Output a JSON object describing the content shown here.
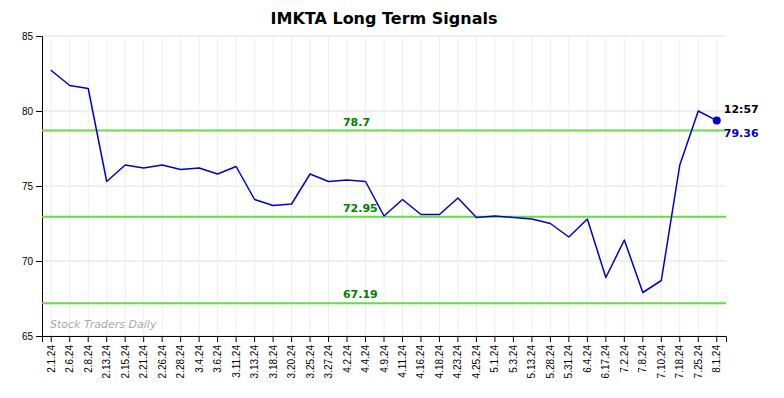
{
  "chart_data": {
    "type": "line",
    "title": "IMKTA Long Term Signals",
    "categories": [
      "2.1.24",
      "2.6.24",
      "2.8.24",
      "2.13.24",
      "2.15.24",
      "2.21.24",
      "2.26.24",
      "2.28.24",
      "3.4.24",
      "3.6.24",
      "3.11.24",
      "3.13.24",
      "3.18.24",
      "3.20.24",
      "3.25.24",
      "3.27.24",
      "4.2.24",
      "4.4.24",
      "4.9.24",
      "4.11.24",
      "4.16.24",
      "4.18.24",
      "4.23.24",
      "4.25.24",
      "5.1.24",
      "5.3.24",
      "5.13.24",
      "5.28.24",
      "5.31.24",
      "6.4.24",
      "6.17.24",
      "7.2.24",
      "7.8.24",
      "7.10.24",
      "7.18.24",
      "7.25.24",
      "8.1.24"
    ],
    "values": [
      82.7,
      81.7,
      81.5,
      75.3,
      76.4,
      76.2,
      76.4,
      76.1,
      76.2,
      75.8,
      76.3,
      74.1,
      73.7,
      73.8,
      75.8,
      75.3,
      75.4,
      75.3,
      73.0,
      74.1,
      73.1,
      73.1,
      74.2,
      72.9,
      73.0,
      72.9,
      72.8,
      72.5,
      71.6,
      72.8,
      68.9,
      71.4,
      67.9,
      68.7,
      76.4,
      80.0,
      79.36
    ],
    "color": "#0000cc",
    "reference_lines": {
      "values": [
        78.7,
        72.95,
        67.19
      ],
      "labels": [
        "78.7",
        "72.95",
        "67.19"
      ],
      "color": "#66dd44"
    },
    "annotations": [
      {
        "text": "12:57"
      },
      {
        "text": "Stock Traders Daily"
      }
    ],
    "ylim": [
      65,
      85
    ],
    "yticks": [
      65,
      70,
      75,
      80,
      85
    ],
    "grid": true
  }
}
